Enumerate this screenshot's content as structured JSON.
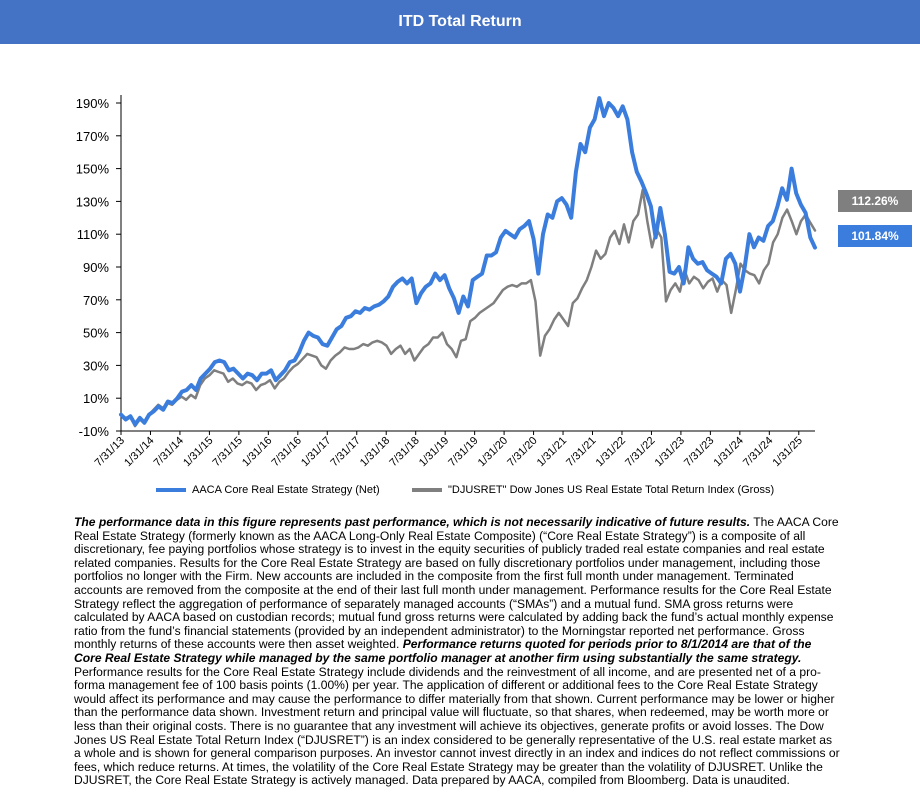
{
  "header": {
    "title": "ITD Total Return"
  },
  "chart_data": {
    "type": "line",
    "title": "ITD Total Return",
    "xlabel": "",
    "ylabel": "",
    "ylim": [
      -10,
      200
    ],
    "y_ticks": [
      -10,
      10,
      30,
      50,
      70,
      90,
      110,
      130,
      150,
      170,
      190
    ],
    "y_tick_labels": [
      "-10%",
      "10%",
      "30%",
      "50%",
      "70%",
      "90%",
      "110%",
      "130%",
      "150%",
      "170%",
      "190%"
    ],
    "x_tick_labels": [
      "7/31/13",
      "1/31/14",
      "7/31/14",
      "1/31/15",
      "7/31/15",
      "1/31/16",
      "7/31/16",
      "1/31/17",
      "7/31/17",
      "1/31/18",
      "7/31/18",
      "1/31/19",
      "7/31/19",
      "1/31/20",
      "7/31/20",
      "1/31/21",
      "7/31/21",
      "1/31/22",
      "7/31/22",
      "1/31/23",
      "7/31/23",
      "1/31/24",
      "7/31/24",
      "1/31/25"
    ],
    "x_start": "7/31/13",
    "x_end": "5/31/25",
    "legend_position": "bottom",
    "grid": false,
    "series": [
      {
        "name": "AACA Core Real Estate Strategy (Net)",
        "color": "#3B7DDD",
        "end_label": "101.84%",
        "values": [
          0,
          -3,
          -1,
          -6,
          -2,
          -5,
          0,
          2,
          5,
          3,
          8,
          7,
          10,
          14,
          15,
          18,
          15,
          22,
          25,
          28,
          32,
          33,
          32,
          27,
          28,
          25,
          22,
          25,
          24,
          21,
          25,
          25,
          27,
          21,
          24,
          27,
          32,
          33,
          38,
          45,
          50,
          48,
          47,
          43,
          42,
          47,
          52,
          54,
          59,
          60,
          63,
          62,
          65,
          64,
          66,
          67,
          69,
          72,
          78,
          81,
          83,
          80,
          83,
          68,
          74,
          78,
          80,
          86,
          82,
          85,
          77,
          71,
          62,
          72,
          66,
          82,
          84,
          86,
          97,
          97,
          99,
          108,
          112,
          110,
          108,
          113,
          115,
          118,
          107,
          86,
          110,
          122,
          120,
          130,
          132,
          128,
          120,
          148,
          165,
          160,
          175,
          180,
          193,
          182,
          190,
          187,
          182,
          188,
          180,
          160,
          148,
          142,
          135,
          127,
          108,
          126,
          110,
          87,
          86,
          90,
          80,
          102,
          95,
          92,
          93,
          88,
          86,
          84,
          80,
          95,
          98,
          92,
          75,
          90,
          110,
          102,
          108,
          106,
          115,
          118,
          127,
          138,
          131,
          150,
          135,
          128,
          123,
          108,
          101.84
        ]
      },
      {
        "name": "\"DJUSRET\" Dow Jones US Real Estate Total Return Index (Gross)",
        "color": "#7F7F7F",
        "end_label": "112.26%",
        "values": [
          0,
          -2,
          -1,
          -7,
          -3,
          -5,
          0,
          3,
          6,
          4,
          7,
          6,
          9,
          11,
          9,
          12,
          10,
          18,
          22,
          24,
          27,
          26,
          25,
          20,
          22,
          19,
          18,
          20,
          19,
          15,
          18,
          19,
          21,
          16,
          20,
          22,
          26,
          29,
          31,
          34,
          37,
          36,
          35,
          30,
          28,
          33,
          36,
          38,
          41,
          40,
          40,
          41,
          43,
          42,
          44,
          45,
          44,
          42,
          37,
          40,
          42,
          37,
          40,
          33,
          37,
          41,
          43,
          47,
          47,
          50,
          43,
          40,
          35,
          45,
          46,
          57,
          59,
          62,
          64,
          66,
          68,
          72,
          76,
          78,
          79,
          78,
          80,
          80,
          82,
          69,
          36,
          48,
          52,
          58,
          62,
          58,
          54,
          68,
          71,
          77,
          82,
          90,
          100,
          95,
          98,
          108,
          112,
          104,
          116,
          105,
          118,
          122,
          137,
          118,
          102,
          113,
          108,
          69,
          76,
          80,
          75,
          88,
          80,
          84,
          82,
          77,
          81,
          83,
          75,
          82,
          79,
          62,
          76,
          92,
          88,
          86,
          85,
          80,
          88,
          92,
          105,
          110,
          120,
          125,
          118,
          110,
          118,
          122,
          117,
          112.26
        ]
      }
    ]
  },
  "legend": {
    "blue_label": "AACA Core Real Estate Strategy (Net)",
    "gray_label": "\"DJUSRET\" Dow Jones US Real Estate Total Return Index (Gross)"
  },
  "disclaimer": {
    "p1_bold": "The performance data in this figure represents past performance, which is not necessarily indicative of future results.",
    "p1_text": " The AACA  Core Real Estate Strategy (formerly known as the AACA  Long-Only Real Estate Composite) (“Core Real Estate Strategy”) is a composite of all discretionary, fee paying portfolios whose strategy is to invest in the equity securities of publicly traded real estate companies and real estate related companies. Results for the Core Real Estate Strategy  are based on fully discretionary portfolios under management, including those portfolios no longer with the Firm. New accounts are included in the composite from the first full month under management. Terminated accounts are removed from the composite at the end of their last full month under management. Performance results for the Core Real Estate Strategy reflect the aggregation of performance of separately managed accounts (“SMAs”) and a mutual fund. SMA  gross returns were calculated by AACA  based on custodian records; mutual fund gross returns were calculated by adding back the fund’s actual monthly expense ratio from the fund’s financial statements (provided by an independent administrator) to the Morningstar reported net performance. Gross monthly returns of these accounts were then asset weighted. ",
    "p2_bold": "Performance returns quoted for periods prior to 8/1/2014 are that of the Core Real Estate Strategy while managed by the same portfolio manager at another firm using substantially the same strategy.",
    "p2_text": " Performance results for the Core Real Estate Strategy include dividends and the reinvestment of all income, and are presented net of a pro-forma management fee of 100 basis points (1.00%) per year. The application of different or additional fees to the Core Real Estate Strategy would affect its performance and may cause the performance to differ materially from that  shown. Current performance may be lower or higher than the performance data shown. Investment return and principal value will fluctuate, so that shares, when redeemed, may be worth more or less than their original costs. There is no guarantee that any investment will achieve its objectives, generate profits or avoid losses. The Dow Jones US Real Estate Total Return Index (“DJUSRET”) is an index considered to be generally representative of the U.S.  real estate market as a whole and is shown for general comparison purposes. An investor cannot invest directly in an index and indices do not reflect commissions or fees, which reduce returns. At  times, the volatility of the Core Real Estate Strategy  may be greater than the volatility of DJUSRET. Unlike the DJUSRET, the Core Real Estate Strategy is actively managed. Data prepared by AACA,  compiled from Bloomberg. Data is unaudited."
  }
}
